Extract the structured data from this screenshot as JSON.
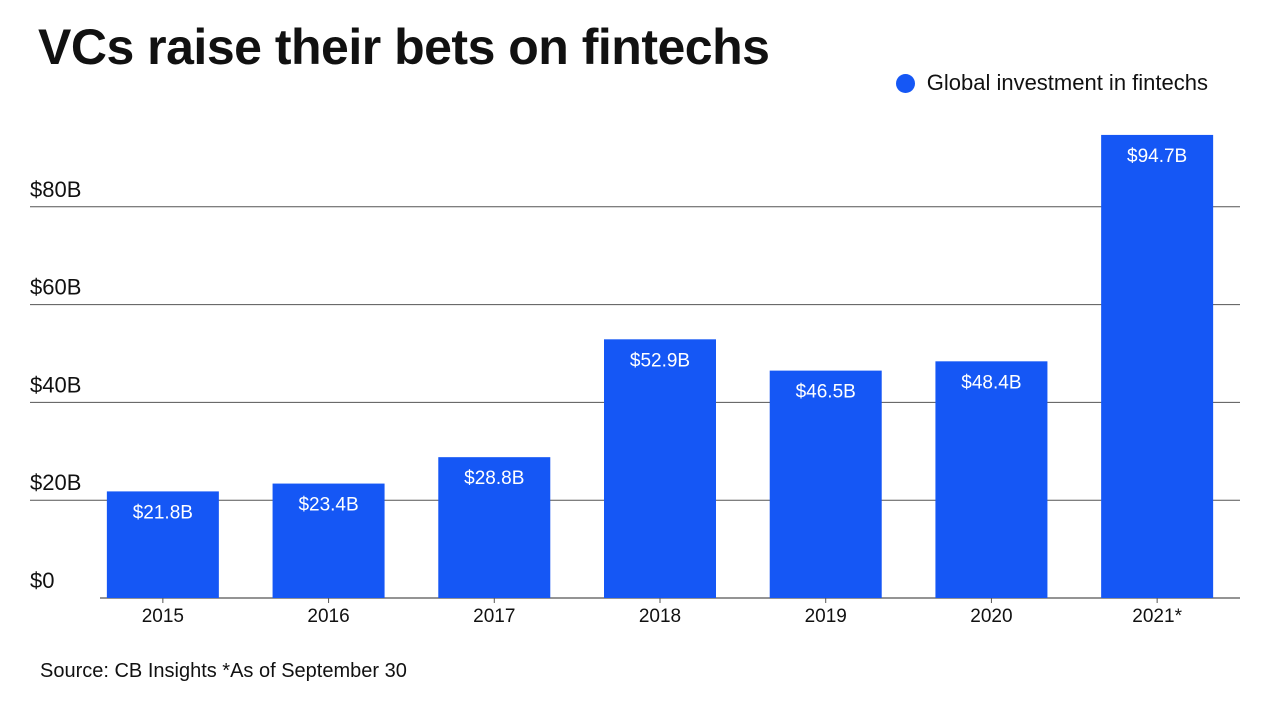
{
  "chart_data": {
    "type": "bar",
    "title": "VCs raise their bets on fintechs",
    "categories": [
      "2015",
      "2016",
      "2017",
      "2018",
      "2019",
      "2020",
      "2021*"
    ],
    "series": [
      {
        "name": "Global investment in fintechs",
        "values": [
          21.8,
          23.4,
          28.8,
          52.9,
          46.5,
          48.4,
          94.7
        ],
        "value_labels": [
          "$21.8B",
          "$23.4B",
          "$28.8B",
          "$52.9B",
          "$46.5B",
          "$48.4B",
          "$94.7B"
        ],
        "color": "#1557f5"
      }
    ],
    "xlabel": "",
    "ylabel": "",
    "ylim": [
      0,
      100
    ],
    "yticks": [
      0,
      20,
      40,
      60,
      80
    ],
    "ytick_labels": [
      "$0",
      "$20B",
      "$40B",
      "$60B",
      "$80B"
    ],
    "grid": true,
    "legend_position": "top-right",
    "source": "Source: CB Insights *As of September 30"
  }
}
